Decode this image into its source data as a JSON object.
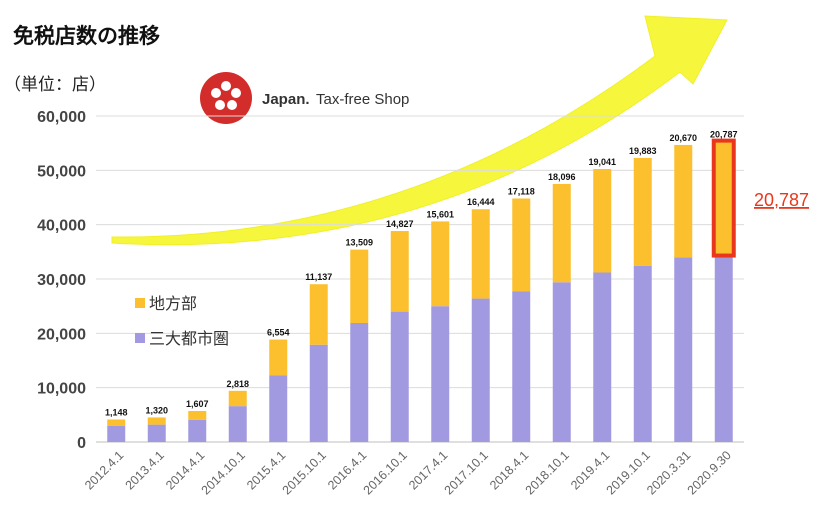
{
  "header": {
    "title": "免税店数の推移",
    "unit": "（単位：店）"
  },
  "logo": {
    "brand_bold": "Japan.",
    "brand_rest": "Tax-free Shop"
  },
  "colors": {
    "metro": "#a29ae0",
    "regional": "#fcc02e",
    "arrow": "#f6f73c",
    "highlight": "#e8371c"
  },
  "callout": {
    "value": "20,787",
    "color": "#e8371c"
  },
  "chart_data": {
    "type": "bar",
    "stacked": true,
    "categories": [
      "2012.4.1",
      "2013.4.1",
      "2014.4.1",
      "2014.10.1",
      "2015.4.1",
      "2015.10.1",
      "2016.4.1",
      "2016.10.1",
      "2017.4.1",
      "2017.10.1",
      "2018.4.1",
      "2018.10.1",
      "2019.4.1",
      "2019.10.1",
      "2020.3.31",
      "2020.9.30"
    ],
    "series": [
      {
        "name": "三大都市圏",
        "values": [
          3000,
          3200,
          4100,
          6600,
          12300,
          17900,
          21900,
          24000,
          25000,
          26400,
          27700,
          29400,
          31200,
          32400,
          34000,
          34500
        ]
      },
      {
        "name": "地方部",
        "values": [
          1148,
          1320,
          1607,
          2818,
          6554,
          11137,
          13509,
          14827,
          15601,
          16444,
          17118,
          18096,
          19041,
          19883,
          20670,
          20787
        ]
      }
    ],
    "data_labels": [
      "1,148",
      "1,320",
      "1,607",
      "2,818",
      "6,554",
      "11,137",
      "13,509",
      "14,827",
      "15,601",
      "16,444",
      "17,118",
      "18,096",
      "19,041",
      "19,883",
      "20,670",
      "20,787"
    ],
    "yticks": [
      "0",
      "10,000",
      "20,000",
      "30,000",
      "40,000",
      "50,000",
      "60,000"
    ],
    "ylim": [
      0,
      60000
    ],
    "legend": [
      "地方部",
      "三大都市圏"
    ],
    "legend_position": "left",
    "grid": true,
    "highlight_category": "2020.9.30"
  }
}
